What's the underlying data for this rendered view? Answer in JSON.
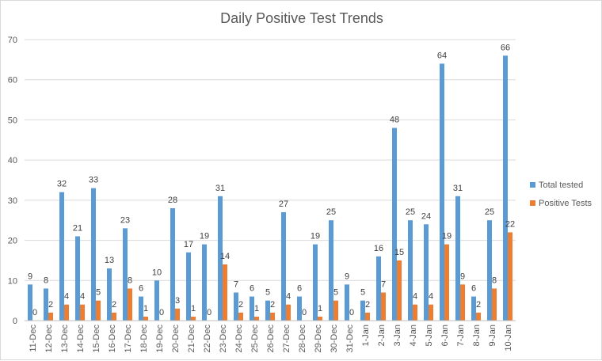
{
  "chart_data": {
    "type": "bar",
    "title": "Daily Positive Test Trends",
    "xlabel": "",
    "ylabel": "",
    "ylim": [
      0,
      70
    ],
    "yticks": [
      0,
      10,
      20,
      30,
      40,
      50,
      60,
      70
    ],
    "grid": true,
    "legend_position": "right",
    "categories": [
      "11-Dec",
      "12-Dec",
      "13-Dec",
      "14-Dec",
      "15-Dec",
      "16-Dec",
      "17-Dec",
      "18-Dec",
      "19-Dec",
      "20-Dec",
      "21-Dec",
      "22-Dec",
      "23-Dec",
      "24-Dec",
      "25-Dec",
      "26-Dec",
      "27-Dec",
      "28-Dec",
      "29-Dec",
      "30-Dec",
      "31-Dec",
      "1-Jan",
      "2-Jan",
      "3-Jan",
      "4-Jan",
      "5-Jan",
      "6-Jan",
      "7-Jan",
      "8-Jan",
      "9-Jan",
      "10-Jan"
    ],
    "series": [
      {
        "name": "Total tested",
        "color": "#5B9BD5",
        "values": [
          9,
          8,
          32,
          21,
          33,
          13,
          23,
          6,
          10,
          28,
          17,
          19,
          31,
          7,
          6,
          5,
          27,
          6,
          19,
          25,
          9,
          5,
          16,
          48,
          25,
          24,
          64,
          31,
          6,
          25,
          66
        ]
      },
      {
        "name": "Positive Tests",
        "color": "#ED7D31",
        "values": [
          0,
          2,
          4,
          4,
          5,
          2,
          8,
          1,
          0,
          3,
          1,
          0,
          14,
          2,
          1,
          2,
          4,
          0,
          1,
          5,
          0,
          2,
          7,
          15,
          4,
          4,
          19,
          9,
          2,
          8,
          22
        ]
      }
    ]
  }
}
